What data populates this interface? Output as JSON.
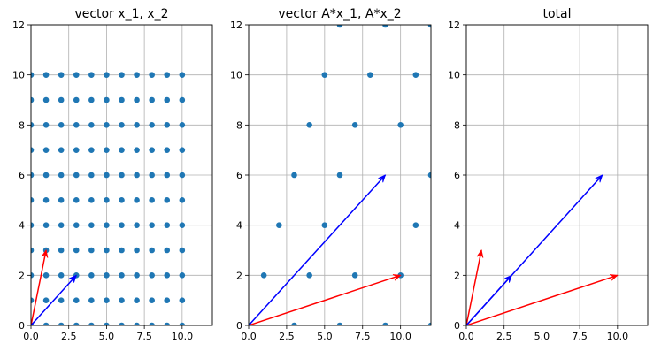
{
  "chart_data": [
    {
      "type": "scatter",
      "title": "vector x_1, x_2",
      "xlim": [
        0,
        12
      ],
      "ylim": [
        0,
        12
      ],
      "grid": true,
      "xticks": [
        0,
        2.5,
        5,
        7.5,
        10
      ],
      "xtick_labels": [
        "0.0",
        "2.5",
        "5.0",
        "7.5",
        "10.0"
      ],
      "yticks": [
        0,
        2,
        4,
        6,
        8,
        10,
        12
      ],
      "ytick_labels": [
        "0",
        "2",
        "4",
        "6",
        "8",
        "10",
        "12"
      ],
      "scatter": {
        "color": "#1f77b4",
        "points": [
          [
            0,
            0
          ],
          [
            1,
            0
          ],
          [
            2,
            0
          ],
          [
            3,
            0
          ],
          [
            4,
            0
          ],
          [
            5,
            0
          ],
          [
            6,
            0
          ],
          [
            7,
            0
          ],
          [
            8,
            0
          ],
          [
            9,
            0
          ],
          [
            10,
            0
          ],
          [
            0,
            1
          ],
          [
            1,
            1
          ],
          [
            2,
            1
          ],
          [
            3,
            1
          ],
          [
            4,
            1
          ],
          [
            5,
            1
          ],
          [
            6,
            1
          ],
          [
            7,
            1
          ],
          [
            8,
            1
          ],
          [
            9,
            1
          ],
          [
            10,
            1
          ],
          [
            0,
            2
          ],
          [
            1,
            2
          ],
          [
            2,
            2
          ],
          [
            3,
            2
          ],
          [
            4,
            2
          ],
          [
            5,
            2
          ],
          [
            6,
            2
          ],
          [
            7,
            2
          ],
          [
            8,
            2
          ],
          [
            9,
            2
          ],
          [
            10,
            2
          ],
          [
            0,
            3
          ],
          [
            1,
            3
          ],
          [
            2,
            3
          ],
          [
            3,
            3
          ],
          [
            4,
            3
          ],
          [
            5,
            3
          ],
          [
            6,
            3
          ],
          [
            7,
            3
          ],
          [
            8,
            3
          ],
          [
            9,
            3
          ],
          [
            10,
            3
          ],
          [
            0,
            4
          ],
          [
            1,
            4
          ],
          [
            2,
            4
          ],
          [
            3,
            4
          ],
          [
            4,
            4
          ],
          [
            5,
            4
          ],
          [
            6,
            4
          ],
          [
            7,
            4
          ],
          [
            8,
            4
          ],
          [
            9,
            4
          ],
          [
            10,
            4
          ],
          [
            0,
            5
          ],
          [
            1,
            5
          ],
          [
            2,
            5
          ],
          [
            3,
            5
          ],
          [
            4,
            5
          ],
          [
            5,
            5
          ],
          [
            6,
            5
          ],
          [
            7,
            5
          ],
          [
            8,
            5
          ],
          [
            9,
            5
          ],
          [
            10,
            5
          ],
          [
            0,
            6
          ],
          [
            1,
            6
          ],
          [
            2,
            6
          ],
          [
            3,
            6
          ],
          [
            4,
            6
          ],
          [
            5,
            6
          ],
          [
            6,
            6
          ],
          [
            7,
            6
          ],
          [
            8,
            6
          ],
          [
            9,
            6
          ],
          [
            10,
            6
          ],
          [
            0,
            7
          ],
          [
            1,
            7
          ],
          [
            2,
            7
          ],
          [
            3,
            7
          ],
          [
            4,
            7
          ],
          [
            5,
            7
          ],
          [
            6,
            7
          ],
          [
            7,
            7
          ],
          [
            8,
            7
          ],
          [
            9,
            7
          ],
          [
            10,
            7
          ],
          [
            0,
            8
          ],
          [
            1,
            8
          ],
          [
            2,
            8
          ],
          [
            3,
            8
          ],
          [
            4,
            8
          ],
          [
            5,
            8
          ],
          [
            6,
            8
          ],
          [
            7,
            8
          ],
          [
            8,
            8
          ],
          [
            9,
            8
          ],
          [
            10,
            8
          ],
          [
            0,
            9
          ],
          [
            1,
            9
          ],
          [
            2,
            9
          ],
          [
            3,
            9
          ],
          [
            4,
            9
          ],
          [
            5,
            9
          ],
          [
            6,
            9
          ],
          [
            7,
            9
          ],
          [
            8,
            9
          ],
          [
            9,
            9
          ],
          [
            10,
            9
          ],
          [
            0,
            10
          ],
          [
            1,
            10
          ],
          [
            2,
            10
          ],
          [
            3,
            10
          ],
          [
            4,
            10
          ],
          [
            5,
            10
          ],
          [
            6,
            10
          ],
          [
            7,
            10
          ],
          [
            8,
            10
          ],
          [
            9,
            10
          ],
          [
            10,
            10
          ]
        ]
      },
      "vectors": [
        {
          "x0": 0,
          "y0": 0,
          "x1": 1,
          "y1": 3,
          "color": "#ff0000"
        },
        {
          "x0": 0,
          "y0": 0,
          "x1": 3,
          "y1": 2,
          "color": "#0000ff"
        }
      ]
    },
    {
      "type": "scatter",
      "title": "vector A*x_1, A*x_2",
      "xlim": [
        0,
        12
      ],
      "ylim": [
        0,
        12
      ],
      "grid": true,
      "xticks": [
        0,
        2.5,
        5,
        7.5,
        10
      ],
      "xtick_labels": [
        "0.0",
        "2.5",
        "5.0",
        "7.5",
        "10.0"
      ],
      "yticks": [
        0,
        2,
        4,
        6,
        8,
        10,
        12
      ],
      "ytick_labels": [
        "0",
        "2",
        "4",
        "6",
        "8",
        "10",
        "12"
      ],
      "scatter": {
        "color": "#1f77b4",
        "points": [
          [
            0,
            0
          ],
          [
            3,
            0
          ],
          [
            6,
            0
          ],
          [
            9,
            0
          ],
          [
            12,
            0
          ],
          [
            1,
            2
          ],
          [
            4,
            2
          ],
          [
            7,
            2
          ],
          [
            10,
            2
          ],
          [
            2,
            4
          ],
          [
            5,
            4
          ],
          [
            11,
            4
          ],
          [
            3,
            6
          ],
          [
            6,
            6
          ],
          [
            12,
            6
          ],
          [
            4,
            8
          ],
          [
            7,
            8
          ],
          [
            10,
            8
          ],
          [
            5,
            10
          ],
          [
            8,
            10
          ],
          [
            11,
            10
          ],
          [
            6,
            12
          ],
          [
            9,
            12
          ],
          [
            12,
            12
          ]
        ]
      },
      "vectors": [
        {
          "x0": 0,
          "y0": 0,
          "x1": 10,
          "y1": 2,
          "color": "#ff0000"
        },
        {
          "x0": 0,
          "y0": 0,
          "x1": 9,
          "y1": 6,
          "color": "#0000ff"
        }
      ]
    },
    {
      "type": "line",
      "title": "total",
      "xlim": [
        0,
        12
      ],
      "ylim": [
        0,
        12
      ],
      "grid": true,
      "xticks": [
        0,
        2.5,
        5,
        7.5,
        10
      ],
      "xtick_labels": [
        "0.0",
        "2.5",
        "5.0",
        "7.5",
        "10.0"
      ],
      "yticks": [
        0,
        2,
        4,
        6,
        8,
        10,
        12
      ],
      "ytick_labels": [
        "0",
        "2",
        "4",
        "6",
        "8",
        "10",
        "12"
      ],
      "scatter": {
        "color": "#1f77b4",
        "points": []
      },
      "vectors": [
        {
          "x0": 0,
          "y0": 0,
          "x1": 1,
          "y1": 3,
          "color": "#ff0000"
        },
        {
          "x0": 0,
          "y0": 0,
          "x1": 3,
          "y1": 2,
          "color": "#0000ff"
        },
        {
          "x0": 0,
          "y0": 0,
          "x1": 10,
          "y1": 2,
          "color": "#ff0000"
        },
        {
          "x0": 0,
          "y0": 0,
          "x1": 9,
          "y1": 6,
          "color": "#0000ff"
        }
      ]
    }
  ]
}
